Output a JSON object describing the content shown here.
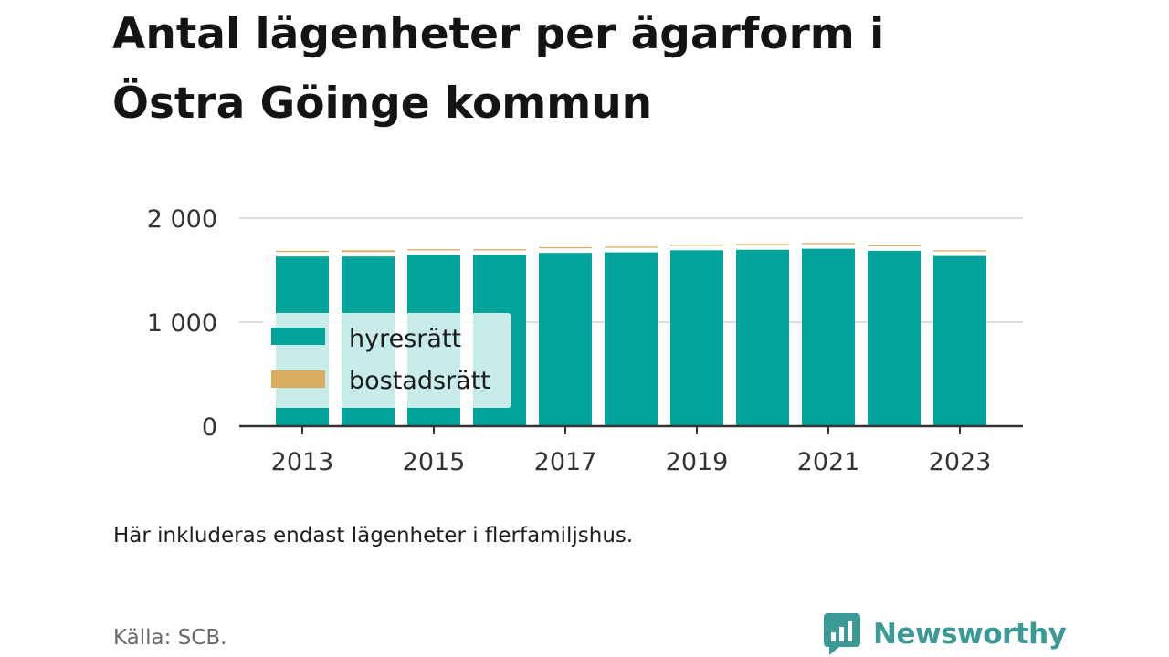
{
  "title": "Antal lägenheter per ägarform i Östra Göinge kommun",
  "note": "Här inkluderas endast lägenheter i flerfamiljshus.",
  "source": "Källa: SCB.",
  "brand": "Newsworthy",
  "colors": {
    "hyresratt": "#00a39a",
    "bostadsratt": "#d9ad5e",
    "brand": "#3b9a96"
  },
  "chart_data": {
    "type": "bar",
    "stacked": true,
    "categories": [
      "2013",
      "2014",
      "2015",
      "2016",
      "2017",
      "2018",
      "2019",
      "2020",
      "2021",
      "2022",
      "2023"
    ],
    "series": [
      {
        "name": "hyresrätt",
        "values": [
          1630,
          1630,
          1645,
          1645,
          1665,
          1670,
          1690,
          1695,
          1705,
          1685,
          1635
        ]
      },
      {
        "name": "bostadsrätt",
        "values": [
          55,
          60,
          55,
          55,
          55,
          55,
          55,
          55,
          55,
          55,
          55
        ]
      }
    ],
    "x_tick_labels": [
      "2013",
      "2015",
      "2017",
      "2019",
      "2021",
      "2023"
    ],
    "y_ticks": [
      0,
      1000,
      2000
    ],
    "y_tick_labels": [
      "0",
      "1 000",
      "2 000"
    ],
    "ylim": [
      0,
      2000
    ],
    "grid": true,
    "legend_position": "left, overlapping bars"
  }
}
